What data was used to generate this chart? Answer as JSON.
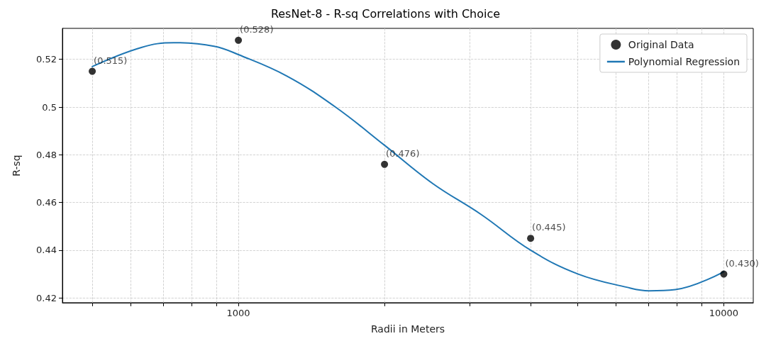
{
  "chart_data": {
    "type": "scatter",
    "title": "ResNet-8 - R-sq Correlations with Choice",
    "xlabel": "Radii in Meters",
    "ylabel": "R-sq",
    "log": "x",
    "xlim": [
      434,
      11500
    ],
    "ylim": [
      0.418,
      0.533
    ],
    "xticks": [
      {
        "value": 500,
        "label": null
      },
      {
        "value": 600,
        "label": null
      },
      {
        "value": 700,
        "label": null
      },
      {
        "value": 800,
        "label": null
      },
      {
        "value": 900,
        "label": null
      },
      1000,
      {
        "value": 2000,
        "label": null
      },
      {
        "value": 3000,
        "label": null
      },
      {
        "value": 4000,
        "label": null
      },
      {
        "value": 5000,
        "label": null
      },
      {
        "value": 6000,
        "label": null
      },
      {
        "value": 7000,
        "label": null
      },
      {
        "value": 8000,
        "label": null
      },
      {
        "value": 9000,
        "label": null
      },
      10000
    ],
    "yticks": [
      0.42,
      0.44,
      0.46,
      0.48,
      0.5,
      0.52
    ],
    "grid": true,
    "legend": "top right",
    "series": [
      {
        "name": "Original Data",
        "color": "#000000",
        "marker": "circle",
        "x": [
          500,
          1000,
          2000,
          4000,
          10000
        ],
        "values": [
          0.515,
          0.528,
          0.476,
          0.445,
          0.43
        ],
        "value_labels": [
          "(0.515)",
          "(0.528)",
          "(0.476)",
          "(0.445)",
          "(0.430)"
        ]
      },
      {
        "name": "Polynomial Regression",
        "type": "line",
        "color": "#1f77b4",
        "marker": "none",
        "line_style": "solid",
        "x": [
          500,
          631,
          736,
          891,
          1000,
          1259,
          1585,
          2000,
          2512,
          3162,
          4000,
          5012,
          6310,
          7015,
          7943,
          10000
        ],
        "values": [
          0.517,
          0.525,
          0.527,
          0.5255,
          0.522,
          0.513,
          0.5,
          0.484,
          0.468,
          0.455,
          0.44,
          0.43,
          0.4245,
          0.423,
          0.4235,
          0.431
        ]
      }
    ]
  }
}
